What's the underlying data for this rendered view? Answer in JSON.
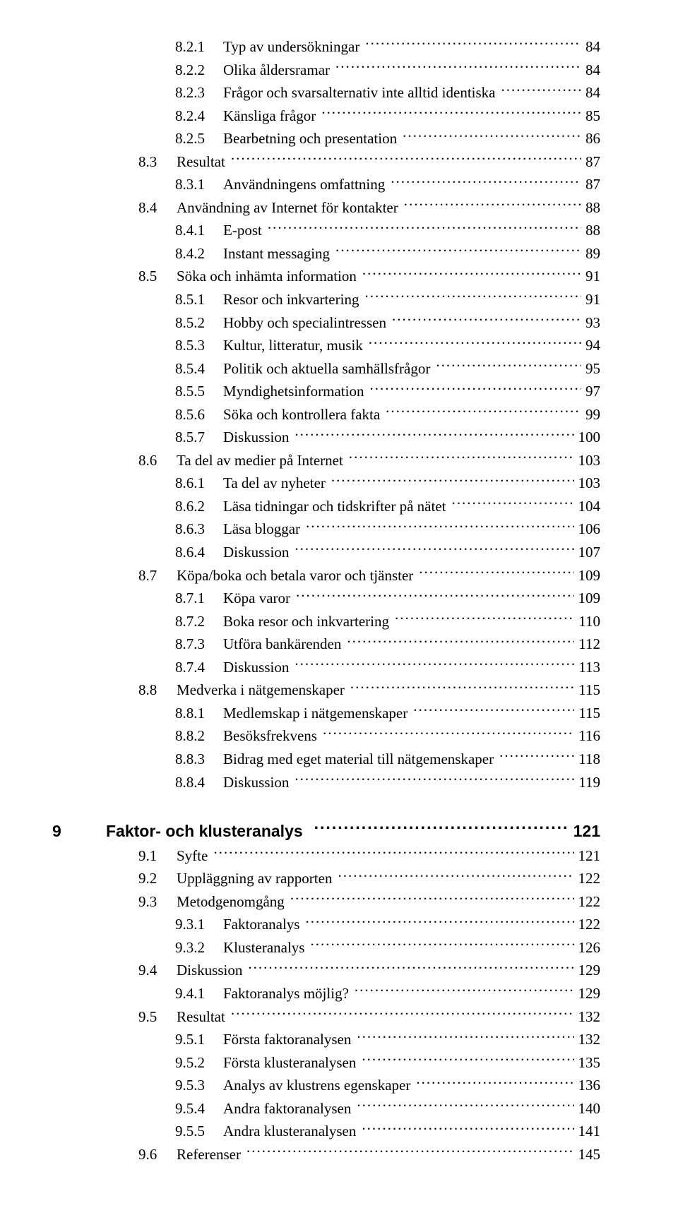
{
  "toc": [
    {
      "type": "subsection",
      "num": "8.2.1",
      "title": "Typ av undersökningar",
      "page": 84
    },
    {
      "type": "subsection",
      "num": "8.2.2",
      "title": "Olika åldersramar",
      "page": 84
    },
    {
      "type": "subsection",
      "num": "8.2.3",
      "title": "Frågor och svarsalternativ inte alltid identiska",
      "page": 84
    },
    {
      "type": "subsection",
      "num": "8.2.4",
      "title": "Känsliga frågor",
      "page": 85
    },
    {
      "type": "subsection",
      "num": "8.2.5",
      "title": "Bearbetning och presentation",
      "page": 86
    },
    {
      "type": "section",
      "num": "8.3",
      "title": "Resultat",
      "page": 87
    },
    {
      "type": "subsection",
      "num": "8.3.1",
      "title": "Användningens omfattning",
      "page": 87
    },
    {
      "type": "section",
      "num": "8.4",
      "title": "Användning av Internet för kontakter",
      "page": 88
    },
    {
      "type": "subsection",
      "num": "8.4.1",
      "title": "E-post",
      "page": 88
    },
    {
      "type": "subsection",
      "num": "8.4.2",
      "title": "Instant messaging",
      "page": 89
    },
    {
      "type": "section",
      "num": "8.5",
      "title": "Söka och inhämta information",
      "page": 91
    },
    {
      "type": "subsection",
      "num": "8.5.1",
      "title": "Resor och inkvartering",
      "page": 91
    },
    {
      "type": "subsection",
      "num": "8.5.2",
      "title": "Hobby och specialintressen",
      "page": 93
    },
    {
      "type": "subsection",
      "num": "8.5.3",
      "title": "Kultur, litteratur, musik",
      "page": 94
    },
    {
      "type": "subsection",
      "num": "8.5.4",
      "title": "Politik och aktuella samhällsfrågor",
      "page": 95
    },
    {
      "type": "subsection",
      "num": "8.5.5",
      "title": "Myndighetsinformation",
      "page": 97
    },
    {
      "type": "subsection",
      "num": "8.5.6",
      "title": "Söka och kontrollera fakta",
      "page": 99
    },
    {
      "type": "subsection",
      "num": "8.5.7",
      "title": "Diskussion",
      "page": 100
    },
    {
      "type": "section",
      "num": "8.6",
      "title": "Ta del av medier på Internet",
      "page": 103
    },
    {
      "type": "subsection",
      "num": "8.6.1",
      "title": "Ta del av nyheter",
      "page": 103
    },
    {
      "type": "subsection",
      "num": "8.6.2",
      "title": "Läsa tidningar och tidskrifter på nätet",
      "page": 104
    },
    {
      "type": "subsection",
      "num": "8.6.3",
      "title": "Läsa bloggar",
      "page": 106
    },
    {
      "type": "subsection",
      "num": "8.6.4",
      "title": "Diskussion",
      "page": 107
    },
    {
      "type": "section",
      "num": "8.7",
      "title": "Köpa/boka och betala varor och tjänster",
      "page": 109
    },
    {
      "type": "subsection",
      "num": "8.7.1",
      "title": "Köpa varor",
      "page": 109
    },
    {
      "type": "subsection",
      "num": "8.7.2",
      "title": "Boka resor och inkvartering",
      "page": 110
    },
    {
      "type": "subsection",
      "num": "8.7.3",
      "title": "Utföra bankärenden",
      "page": 112
    },
    {
      "type": "subsection",
      "num": "8.7.4",
      "title": "Diskussion",
      "page": 113
    },
    {
      "type": "section",
      "num": "8.8",
      "title": "Medverka i nätgemenskaper",
      "page": 115
    },
    {
      "type": "subsection",
      "num": "8.8.1",
      "title": "Medlemskap i nätgemenskaper",
      "page": 115
    },
    {
      "type": "subsection",
      "num": "8.8.2",
      "title": "Besöksfrekvens",
      "page": 116
    },
    {
      "type": "subsection",
      "num": "8.8.3",
      "title": "Bidrag med eget material till nätgemenskaper",
      "page": 118
    },
    {
      "type": "subsection",
      "num": "8.8.4",
      "title": "Diskussion",
      "page": 119
    },
    {
      "type": "chapter",
      "num": "9",
      "title": "Faktor- och klusteranalys",
      "page": 121
    },
    {
      "type": "section",
      "num": "9.1",
      "title": "Syfte",
      "page": 121
    },
    {
      "type": "section",
      "num": "9.2",
      "title": "Uppläggning av rapporten",
      "page": 122
    },
    {
      "type": "section",
      "num": "9.3",
      "title": "Metodgenomgång",
      "page": 122
    },
    {
      "type": "subsection",
      "num": "9.3.1",
      "title": "Faktoranalys",
      "page": 122
    },
    {
      "type": "subsection",
      "num": "9.3.2",
      "title": "Klusteranalys",
      "page": 126
    },
    {
      "type": "section",
      "num": "9.4",
      "title": "Diskussion",
      "page": 129
    },
    {
      "type": "subsection",
      "num": "9.4.1",
      "title": "Faktoranalys möjlig?",
      "page": 129
    },
    {
      "type": "section",
      "num": "9.5",
      "title": "Resultat",
      "page": 132
    },
    {
      "type": "subsection",
      "num": "9.5.1",
      "title": "Första faktoranalysen",
      "page": 132
    },
    {
      "type": "subsection",
      "num": "9.5.2",
      "title": "Första klusteranalysen",
      "page": 135
    },
    {
      "type": "subsection",
      "num": "9.5.3",
      "title": "Analys av klustrens egenskaper",
      "page": 136
    },
    {
      "type": "subsection",
      "num": "9.5.4",
      "title": "Andra faktoranalysen",
      "page": 140
    },
    {
      "type": "subsection",
      "num": "9.5.5",
      "title": "Andra klusteranalysen",
      "page": 141
    },
    {
      "type": "section",
      "num": "9.6",
      "title": "Referenser",
      "page": 145
    }
  ]
}
